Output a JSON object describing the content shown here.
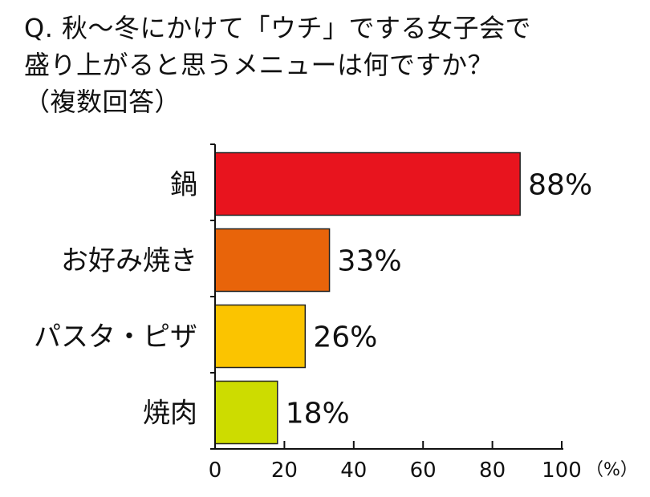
{
  "title_lines": [
    "Q. 秋〜冬にかけて「ウチ」でする女子会で",
    "盛り上がると思うメニューは何ですか？",
    "（複数回答）"
  ],
  "chart_data": {
    "type": "bar",
    "orientation": "horizontal",
    "title": "Q. 秋〜冬にかけて「ウチ」でする女子会で盛り上がると思うメニューは何ですか？（複数回答）",
    "categories": [
      "鍋",
      "お好み焼き",
      "パスタ・ピザ",
      "焼肉"
    ],
    "values": [
      88,
      33,
      26,
      18
    ],
    "value_labels": [
      "88%",
      "33%",
      "26%",
      "18%"
    ],
    "colors": [
      "#e8141e",
      "#e8640a",
      "#fbc400",
      "#cddc00"
    ],
    "xlim": [
      0,
      100
    ],
    "xticks": [
      0,
      20,
      40,
      60,
      80,
      100
    ],
    "x_unit_label": "（%）",
    "grid": false,
    "legend": "none"
  }
}
